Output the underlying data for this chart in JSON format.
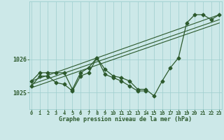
{
  "xlabel": "Graphe pression niveau de la mer (hPa)",
  "bg_color": "#cce8e8",
  "line_color": "#2d5a2d",
  "grid_color": "#9ecece",
  "hours": [
    0,
    1,
    2,
    3,
    4,
    5,
    6,
    7,
    8,
    9,
    10,
    11,
    12,
    13,
    14,
    15,
    16,
    17,
    18,
    19,
    20,
    21,
    22,
    23
  ],
  "series1": [
    1025.35,
    1025.6,
    1025.6,
    1025.6,
    1025.6,
    1025.1,
    1025.6,
    1025.75,
    1026.05,
    1025.7,
    1025.5,
    1025.45,
    1025.35,
    1025.1,
    1025.1,
    1024.9,
    1025.35,
    1025.75,
    1026.05,
    1027.1,
    1027.35,
    1027.35,
    1027.2,
    1027.35
  ],
  "series2": [
    1025.2,
    1025.5,
    1025.5,
    1025.3,
    1025.25,
    1025.05,
    1025.5,
    1025.6,
    1026.05,
    1025.55,
    1025.45,
    1025.35,
    1025.2,
    1025.05,
    1025.05,
    null,
    null,
    null,
    null,
    null,
    null,
    null,
    null,
    null
  ],
  "trend_lines": [
    [
      0,
      1025.35,
      23,
      1027.35
    ],
    [
      0,
      1025.25,
      23,
      1027.2
    ],
    [
      0,
      1025.15,
      23,
      1027.1
    ]
  ],
  "ylim": [
    1024.55,
    1027.75
  ],
  "yticks": [
    1025,
    1026
  ],
  "xticks": [
    0,
    1,
    2,
    3,
    4,
    5,
    6,
    7,
    8,
    9,
    10,
    11,
    12,
    13,
    14,
    15,
    16,
    17,
    18,
    19,
    20,
    21,
    22,
    23
  ],
  "xlim": [
    -0.3,
    23.3
  ]
}
